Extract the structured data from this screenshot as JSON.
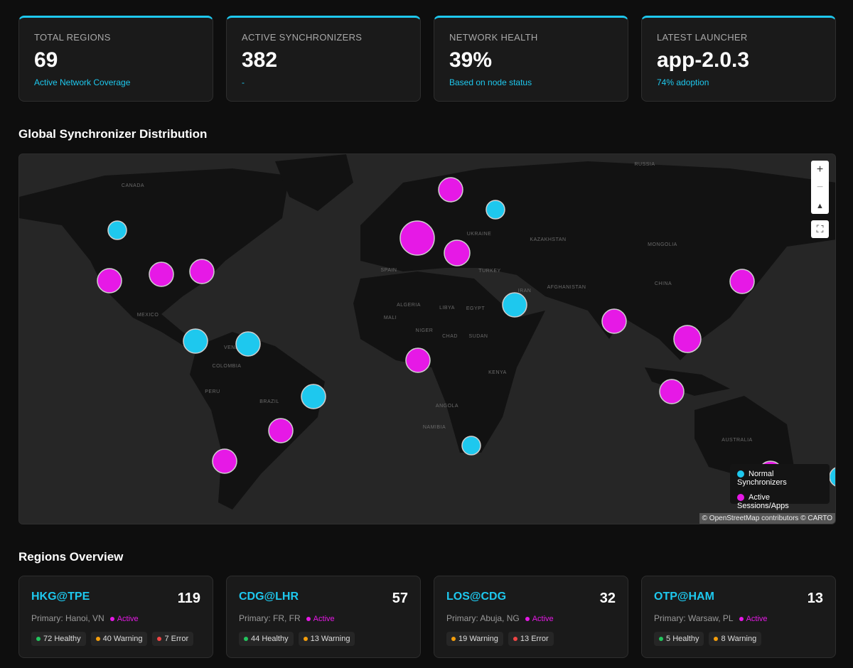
{
  "stats": [
    {
      "label": "TOTAL REGIONS",
      "value": "69",
      "note": "Active Network Coverage"
    },
    {
      "label": "ACTIVE SYNCHRONIZERS",
      "value": "382",
      "note": "-"
    },
    {
      "label": "NETWORK HEALTH",
      "value": "39%",
      "note": "Based on node status"
    },
    {
      "label": "LATEST LAUNCHER",
      "value": "app-2.0.3",
      "note": "74% adoption"
    }
  ],
  "map": {
    "title": "Global Synchronizer Distribution",
    "labels": [
      "CANADA",
      "RUSSIA",
      "KAZAKHSTAN",
      "CHINA",
      "MEXICO",
      "BRAZIL",
      "PERU",
      "ALGERIA",
      "LIBYA",
      "EGYPT",
      "NIGER",
      "CHAD",
      "SUDAN",
      "KENYA",
      "ANGOLA",
      "NAMIBIA",
      "AUSTRALIA",
      "MONGOLIA",
      "TURKEY",
      "IRAN",
      "UKRAINE",
      "SPAIN",
      "COLOMBIA",
      "VENEZUELA",
      "AFGHANISTAN",
      "MALI"
    ],
    "legend": [
      "Normal Synchronizers",
      "Active Sessions/Apps"
    ],
    "attribution": "© OpenStreetMap contributors © CARTO"
  },
  "regions": {
    "title": "Regions Overview",
    "items": [
      {
        "name": "HKG@TPE",
        "count": 119,
        "primary": "Primary: Hanoi, VN",
        "status": "Active",
        "chips": [
          {
            "count": 72,
            "label": "Healthy",
            "color": "#22c55e"
          },
          {
            "count": 40,
            "label": "Warning",
            "color": "#f59e0b"
          },
          {
            "count": 7,
            "label": "Error",
            "color": "#ef4444"
          }
        ]
      },
      {
        "name": "CDG@LHR",
        "count": 57,
        "primary": "Primary: FR, FR",
        "status": "Active",
        "chips": [
          {
            "count": 44,
            "label": "Healthy",
            "color": "#22c55e"
          },
          {
            "count": 13,
            "label": "Warning",
            "color": "#f59e0b"
          }
        ]
      },
      {
        "name": "LOS@CDG",
        "count": 32,
        "primary": "Primary: Abuja, NG",
        "status": "Active",
        "chips": [
          {
            "count": 19,
            "label": "Warning",
            "color": "#f59e0b"
          },
          {
            "count": 13,
            "label": "Error",
            "color": "#ef4444"
          }
        ]
      },
      {
        "name": "OTP@HAM",
        "count": 13,
        "primary": "Primary: Warsaw, PL",
        "status": "Active",
        "chips": [
          {
            "count": 5,
            "label": "Healthy",
            "color": "#22c55e"
          },
          {
            "count": 8,
            "label": "Warning",
            "color": "#f59e0b"
          }
        ]
      }
    ]
  }
}
